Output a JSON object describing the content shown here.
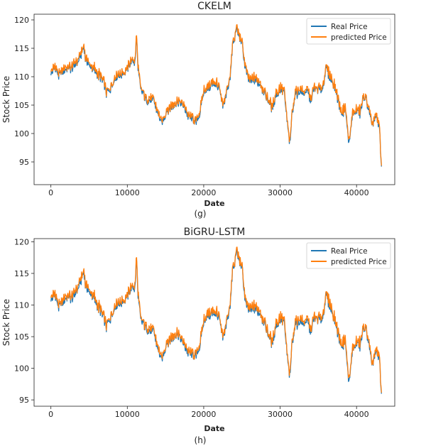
{
  "chart_data": [
    {
      "type": "line",
      "title": "CKELM",
      "xlabel": "Date",
      "ylabel": "Stock Price",
      "caption": "(g)",
      "xlim": [
        -2200,
        45000
      ],
      "ylim": [
        91,
        121
      ],
      "xticks": [
        0,
        10000,
        20000,
        30000,
        40000
      ],
      "yticks": [
        95,
        100,
        105,
        110,
        115,
        120
      ],
      "legend_position": "top-right",
      "series": [
        {
          "name": "Real Price",
          "color": "#1f77b4"
        },
        {
          "name": "predicted Price",
          "color": "#ff7f0e"
        }
      ],
      "x": [
        0,
        500,
        1000,
        1500,
        2000,
        2500,
        3000,
        3500,
        4000,
        4300,
        4500,
        5000,
        5500,
        6000,
        6500,
        7000,
        7300,
        7600,
        8000,
        8500,
        9000,
        9500,
        10000,
        10500,
        10800,
        11000,
        11200,
        11400,
        11700,
        12000,
        12500,
        13000,
        13500,
        14000,
        14500,
        15000,
        15500,
        16000,
        16500,
        17000,
        17500,
        18000,
        18500,
        19000,
        19500,
        20000,
        20500,
        21000,
        21500,
        22000,
        22500,
        23000,
        23500,
        23800,
        24000,
        24200,
        24500,
        25000,
        25500,
        26000,
        26500,
        27000,
        27500,
        28000,
        28500,
        29000,
        29500,
        30000,
        30500,
        31000,
        31300,
        31500,
        32000,
        32500,
        33000,
        33500,
        34000,
        34500,
        35000,
        35500,
        36000,
        36500,
        37000,
        37500,
        38000,
        38500,
        38700,
        39000,
        39500,
        40000,
        40500,
        41000,
        41500,
        42000,
        42500,
        43000,
        43300
      ],
      "values": [
        110.5,
        111.8,
        110,
        111,
        111.2,
        111.5,
        112,
        112.5,
        114,
        115.5,
        113,
        112,
        111.5,
        110.5,
        109.8,
        108.5,
        107,
        107.5,
        108.5,
        110,
        110.2,
        110.8,
        111.5,
        112.5,
        113,
        112.3,
        117.2,
        111.5,
        108,
        107.2,
        106,
        106,
        105.5,
        103.5,
        101.5,
        103.5,
        104.5,
        105,
        105.5,
        105.2,
        104.5,
        103,
        102.5,
        102,
        103.5,
        107.5,
        108,
        108.5,
        109,
        108,
        104.5,
        107,
        110.5,
        116,
        115.8,
        118.5,
        117.5,
        116,
        111,
        109,
        109.5,
        109,
        108.5,
        107,
        105.5,
        104.5,
        107,
        107.5,
        107.5,
        101,
        98,
        103,
        107,
        107.5,
        107,
        107.5,
        106,
        108,
        108,
        107.5,
        111.5,
        110,
        108.5,
        106.5,
        103.5,
        104.5,
        102,
        98,
        103.5,
        104,
        103.5,
        106.5,
        105,
        101,
        103,
        101,
        93
      ]
    },
    {
      "type": "line",
      "title": "BiGRU-LSTM",
      "xlabel": "Date",
      "ylabel": "Stock Price",
      "caption": "(h)",
      "xlim": [
        -2200,
        45000
      ],
      "ylim": [
        94,
        120.5
      ],
      "xticks": [
        0,
        10000,
        20000,
        30000,
        40000
      ],
      "yticks": [
        95,
        100,
        105,
        110,
        115,
        120
      ],
      "legend_position": "top-right",
      "series": [
        {
          "name": "Real Price",
          "color": "#1f77b4"
        },
        {
          "name": "predicted Price",
          "color": "#ff7f0e"
        }
      ],
      "x": [
        0,
        500,
        1000,
        1500,
        2000,
        2500,
        3000,
        3500,
        4000,
        4300,
        4500,
        5000,
        5500,
        6000,
        6500,
        7000,
        7300,
        7600,
        8000,
        8500,
        9000,
        9500,
        10000,
        10500,
        10800,
        11000,
        11200,
        11400,
        11700,
        12000,
        12500,
        13000,
        13500,
        14000,
        14500,
        15000,
        15500,
        16000,
        16500,
        17000,
        17500,
        18000,
        18500,
        19000,
        19500,
        20000,
        20500,
        21000,
        21500,
        22000,
        22500,
        23000,
        23500,
        23800,
        24000,
        24200,
        24500,
        25000,
        25500,
        26000,
        26500,
        27000,
        27500,
        28000,
        28500,
        29000,
        29500,
        30000,
        30500,
        31000,
        31300,
        31500,
        32000,
        32500,
        33000,
        33500,
        34000,
        34500,
        35000,
        35500,
        36000,
        36500,
        37000,
        37500,
        38000,
        38500,
        38700,
        39000,
        39500,
        40000,
        40500,
        41000,
        41500,
        42000,
        42500,
        43000,
        43300
      ],
      "values": [
        110.8,
        111.8,
        109.5,
        110.5,
        111,
        111.2,
        111.5,
        112.5,
        114,
        115.5,
        113,
        112,
        111.5,
        110,
        109,
        107.5,
        106.5,
        107.5,
        108.5,
        110,
        110.2,
        110.8,
        111.5,
        112.5,
        113,
        112.5,
        117.5,
        111.5,
        108,
        107.2,
        106.5,
        106,
        105.5,
        103,
        101,
        103.5,
        104.5,
        105,
        105.5,
        104.5,
        103.5,
        102.5,
        102,
        102,
        103.5,
        107.5,
        108.5,
        108.5,
        109,
        108,
        104.5,
        107,
        110.5,
        116,
        115.5,
        118.5,
        117.5,
        116,
        110,
        109,
        109.5,
        109,
        108.5,
        107,
        105,
        104,
        107,
        107.5,
        107.5,
        101,
        98.5,
        103.5,
        107,
        107.5,
        107,
        107.5,
        106,
        108,
        108,
        107.5,
        111.5,
        110,
        108,
        106,
        103.5,
        104.5,
        101.5,
        97.5,
        103,
        104,
        103.5,
        106.5,
        105,
        100,
        102.5,
        101.5,
        95
      ]
    }
  ]
}
